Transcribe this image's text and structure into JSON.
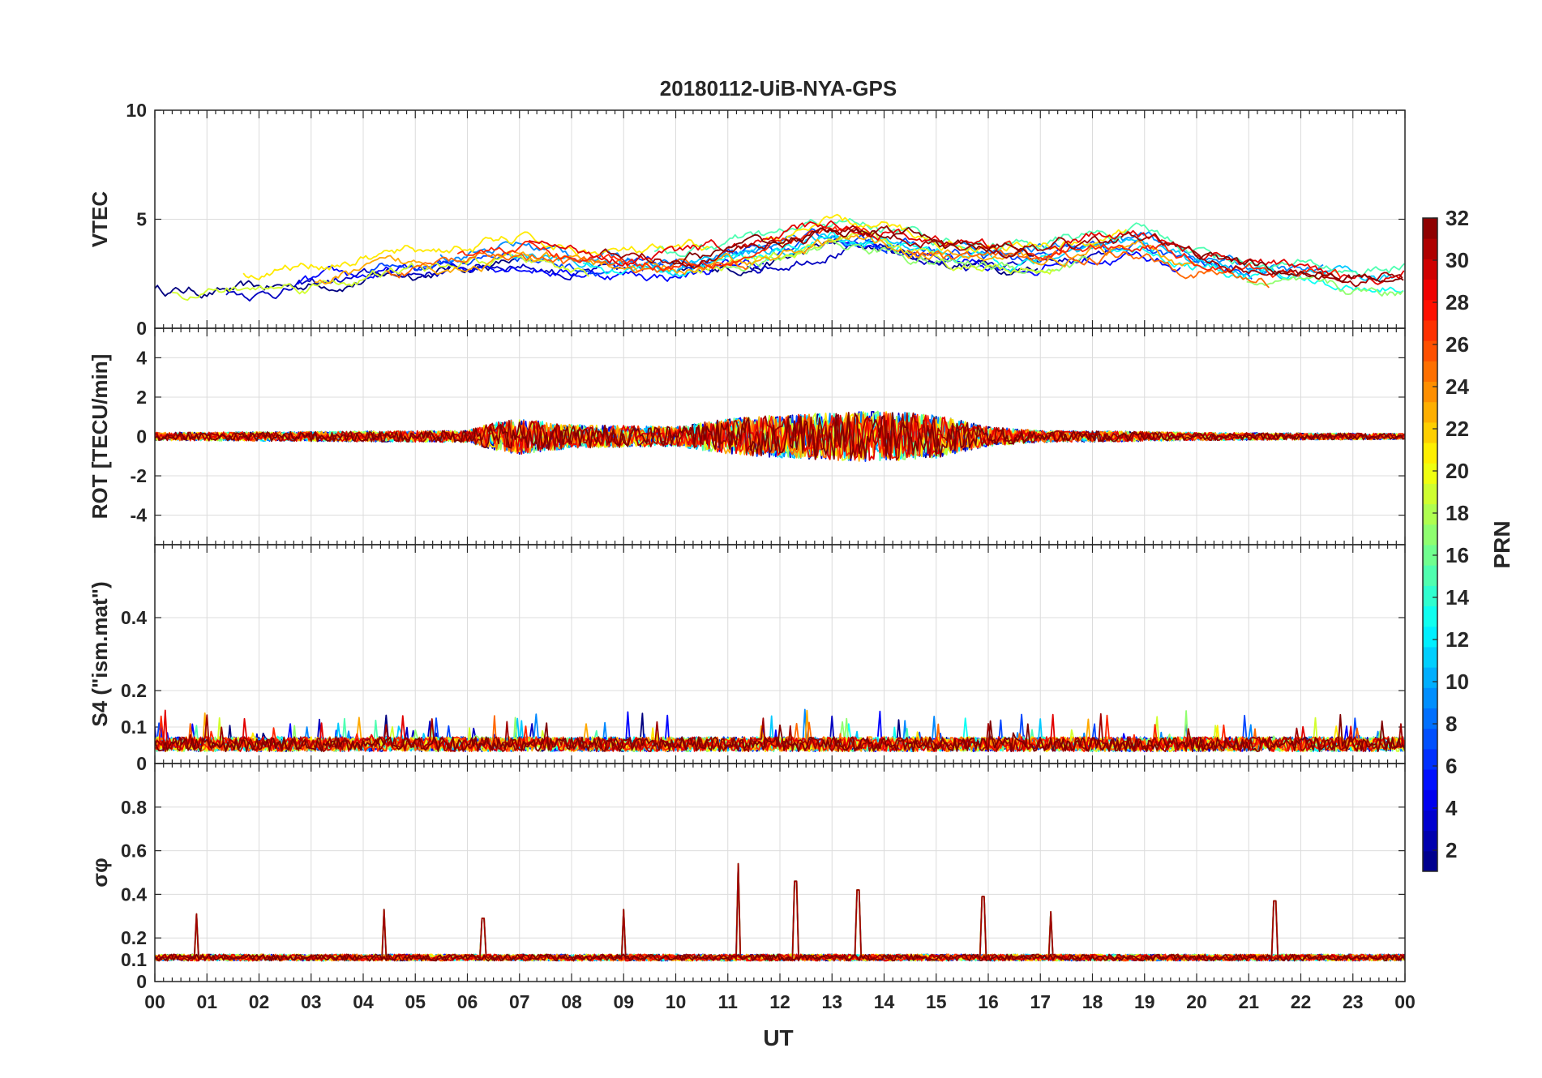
{
  "chart_data": {
    "type": "line",
    "title": "20180112-UiB-NYA-GPS",
    "xlabel": "UT",
    "x_tick_labels": [
      "00",
      "01",
      "02",
      "03",
      "04",
      "05",
      "06",
      "07",
      "08",
      "09",
      "10",
      "11",
      "12",
      "13",
      "14",
      "15",
      "16",
      "17",
      "18",
      "19",
      "20",
      "21",
      "22",
      "23",
      "00"
    ],
    "xlim_hours": [
      0,
      24
    ],
    "panels": [
      {
        "name": "vtec",
        "ylabel": "VTEC",
        "ylim": [
          0,
          10
        ],
        "yticks": [
          0,
          5,
          10
        ],
        "ytick_labels": [
          "0",
          "5",
          "10"
        ],
        "profile_hours": [
          0,
          2,
          4,
          6,
          7,
          8,
          10,
          11,
          12,
          13,
          14,
          15,
          16,
          17,
          18,
          19,
          20,
          21,
          22,
          23,
          24
        ],
        "profile_values": [
          2.2,
          2.2,
          2.8,
          3.3,
          3.6,
          3.1,
          2.9,
          3.3,
          3.6,
          4.3,
          4.1,
          3.6,
          3.4,
          3.3,
          3.7,
          3.8,
          3.1,
          2.6,
          2.3,
          2.1,
          2.2
        ],
        "noise": 0.55
      },
      {
        "name": "rot",
        "ylabel": "ROT [TECU/min]",
        "ylim": [
          -5.5,
          5.5
        ],
        "yticks": [
          -4,
          -2,
          0,
          2,
          4
        ],
        "ytick_labels": [
          "-4",
          "-2",
          "0",
          "2",
          "4"
        ],
        "profile_hours": [
          0,
          6,
          6.5,
          7,
          8,
          10,
          11,
          12,
          13,
          14,
          15,
          16,
          17,
          19,
          20,
          24
        ],
        "profile_values": [
          0.2,
          0.3,
          0.7,
          0.9,
          0.6,
          0.5,
          0.9,
          1.1,
          1.2,
          1.3,
          1.1,
          0.5,
          0.3,
          0.25,
          0.2,
          0.15
        ],
        "noise": 1
      },
      {
        "name": "s4",
        "ylabel": "S4 (\"ism.mat\")",
        "ylim": [
          0,
          0.6
        ],
        "yticks": [
          0,
          0.1,
          0.2,
          0.4
        ],
        "ytick_labels": [
          "0",
          "0.1",
          "0.2",
          "0.4"
        ],
        "profile_hours": [
          0,
          24
        ],
        "profile_values": [
          0.06,
          0.06
        ],
        "noise": 0.025
      },
      {
        "name": "sigma_phi",
        "ylabel": "σφ",
        "ylim": [
          0,
          1
        ],
        "yticks": [
          0,
          0.1,
          0.2,
          0.4,
          0.6,
          0.8
        ],
        "ytick_labels": [
          "0",
          "0.1",
          "0.2",
          "0.4",
          "0.6",
          "0.8"
        ],
        "profile_hours": [
          0,
          24
        ],
        "profile_values": [
          0.11,
          0.11
        ],
        "noise": 0.015,
        "spikes": [
          {
            "t": 0.8,
            "v": 0.31
          },
          {
            "t": 4.4,
            "v": 0.33
          },
          {
            "t": 6.3,
            "v": 0.29
          },
          {
            "t": 9.0,
            "v": 0.33
          },
          {
            "t": 11.2,
            "v": 0.54
          },
          {
            "t": 12.3,
            "v": 0.46
          },
          {
            "t": 13.5,
            "v": 0.42
          },
          {
            "t": 15.9,
            "v": 0.39
          },
          {
            "t": 17.2,
            "v": 0.32
          },
          {
            "t": 21.5,
            "v": 0.37
          }
        ]
      }
    ],
    "colorbar": {
      "label": "PRN",
      "range": [
        1,
        32
      ],
      "ticks": [
        2,
        4,
        6,
        8,
        10,
        12,
        14,
        16,
        18,
        20,
        22,
        24,
        26,
        28,
        30,
        32
      ],
      "tick_labels": [
        "2",
        "4",
        "6",
        "8",
        "10",
        "12",
        "14",
        "16",
        "18",
        "20",
        "22",
        "24",
        "26",
        "28",
        "30",
        "32"
      ],
      "colormap": "jet"
    },
    "series_prn": [
      1,
      3,
      5,
      7,
      9,
      11,
      13,
      15,
      17,
      19,
      21,
      23,
      25,
      27,
      29,
      31,
      32
    ]
  }
}
